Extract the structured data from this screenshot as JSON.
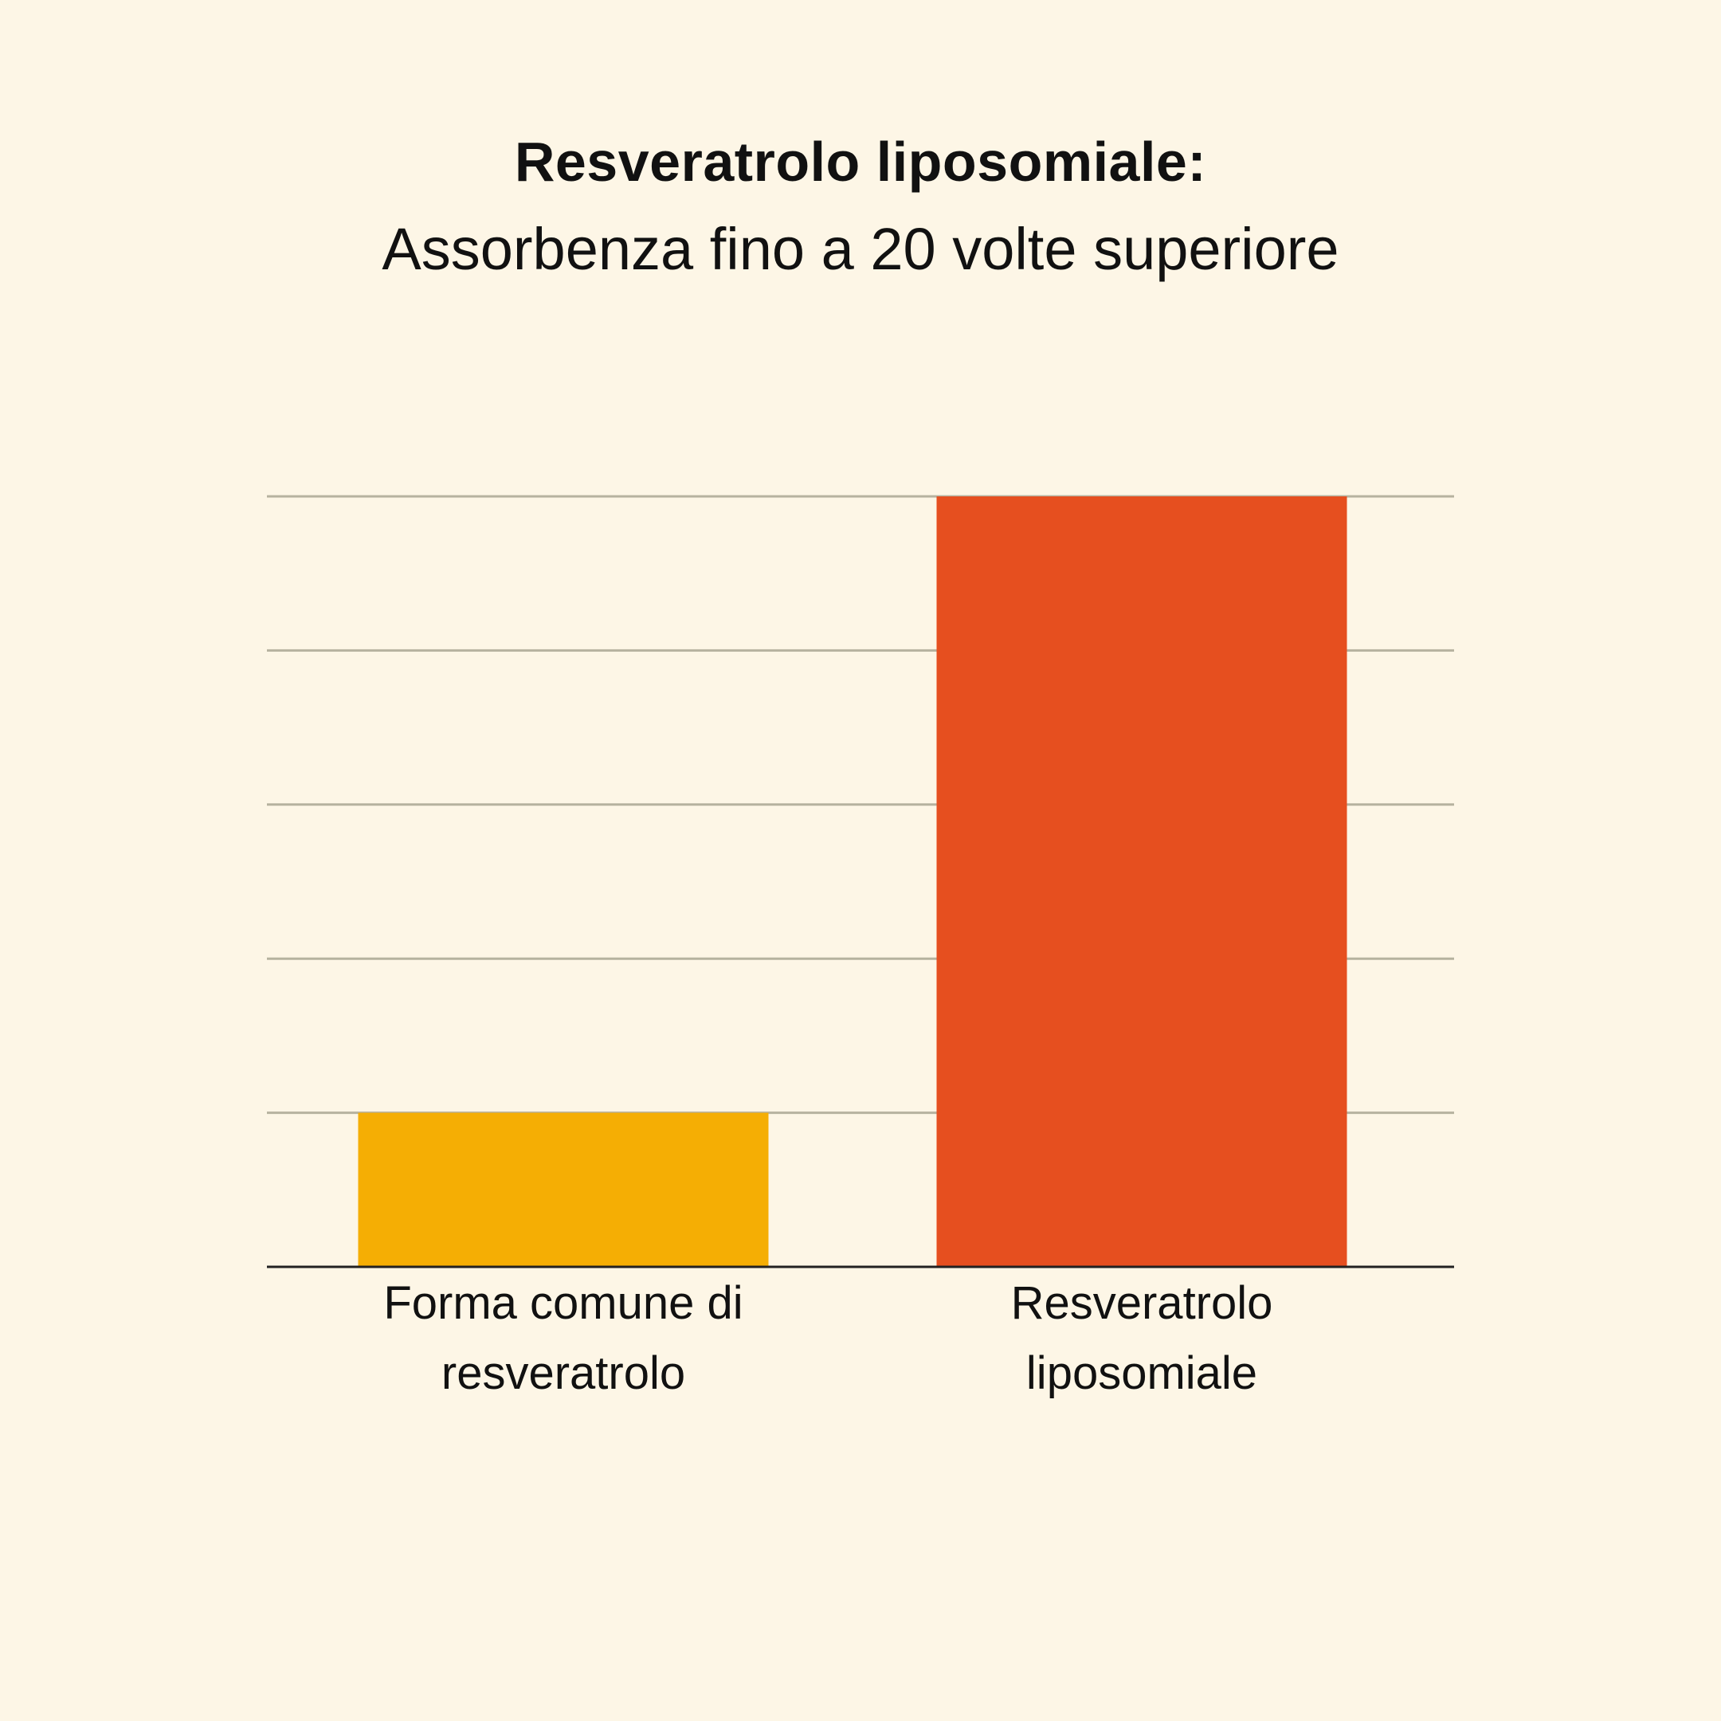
{
  "chart_data": {
    "type": "bar",
    "title": "Resveratrolo liposomiale:",
    "subtitle": "Assorbenza fino a 20 volte superiore",
    "categories": [
      "Forma comune di\nresveratrolo",
      "Resveratrolo\nliposomiale"
    ],
    "values": [
      1,
      5
    ],
    "ylim": [
      0,
      5
    ],
    "gridlines": 5,
    "grid": true,
    "xlabel": "",
    "ylabel": "",
    "colors": [
      "#f5ae04",
      "#e64f1f"
    ],
    "grid_color": "#b6b29f",
    "axis_color": "#222222"
  }
}
